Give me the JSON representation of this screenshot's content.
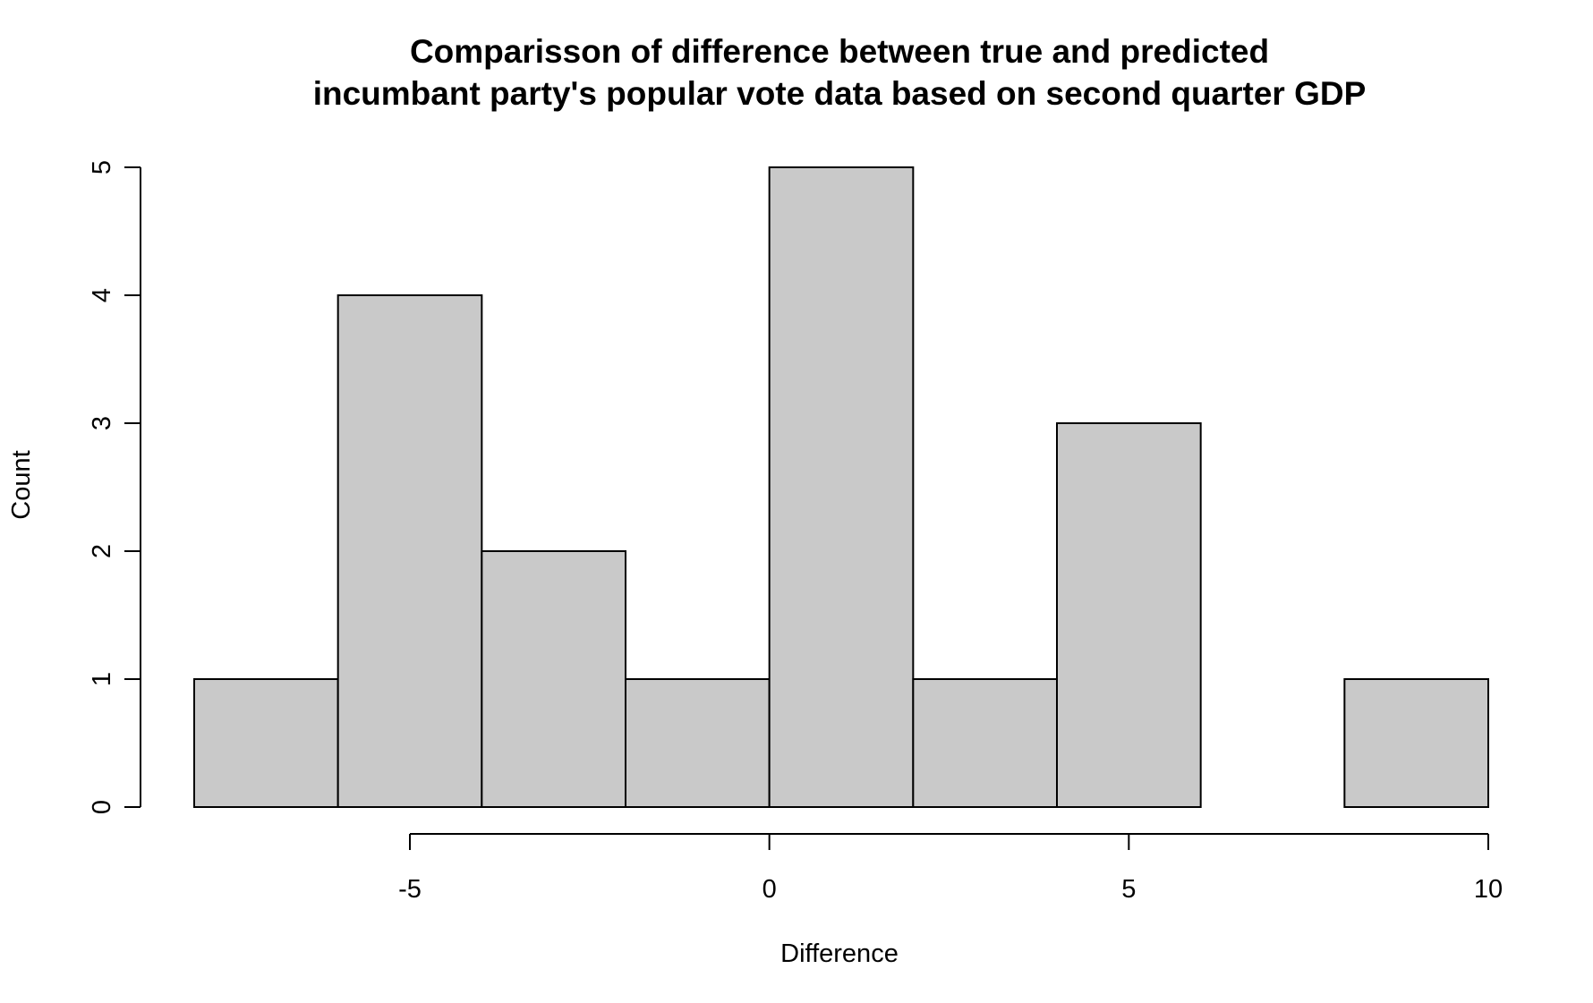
{
  "chart_data": {
    "type": "bar",
    "title": "Comparisson of difference between true and predicted",
    "subtitle": "incumbant party's popular vote data based on second quarter GDP",
    "xlabel": "Difference",
    "ylabel": "Count",
    "bins": [
      {
        "start": -8,
        "end": -6,
        "count": 1
      },
      {
        "start": -6,
        "end": -4,
        "count": 4
      },
      {
        "start": -4,
        "end": -2,
        "count": 2
      },
      {
        "start": -2,
        "end": 0,
        "count": 1
      },
      {
        "start": 0,
        "end": 2,
        "count": 5
      },
      {
        "start": 2,
        "end": 4,
        "count": 1
      },
      {
        "start": 4,
        "end": 6,
        "count": 3
      },
      {
        "start": 6,
        "end": 8,
        "count": 0
      },
      {
        "start": 8,
        "end": 10,
        "count": 1
      }
    ],
    "xlim": [
      -8,
      10
    ],
    "ylim": [
      0,
      5
    ],
    "x_ticks": [
      -5,
      0,
      5,
      10
    ],
    "x_tick_labels": [
      "-5",
      "0",
      "5",
      "10"
    ],
    "y_ticks": [
      0,
      1,
      2,
      3,
      4,
      5
    ],
    "y_tick_labels": [
      "0",
      "1",
      "2",
      "3",
      "4",
      "5"
    ],
    "grid": false,
    "colors": {
      "bar_fill": "#c9c9c9",
      "bar_stroke": "#000000",
      "axis": "#000000"
    }
  }
}
